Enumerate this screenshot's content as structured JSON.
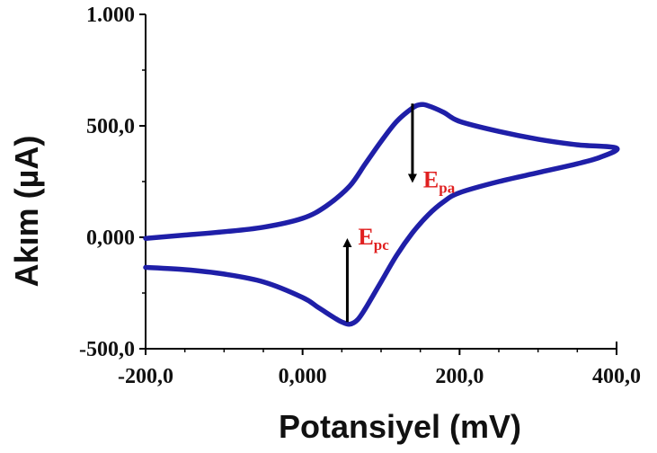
{
  "chart_data": {
    "type": "line",
    "title": "",
    "xlabel": "Potansiyel (mV)",
    "ylabel": "Akım (µA)",
    "xlim": [
      -200,
      400
    ],
    "ylim": [
      -500,
      1000
    ],
    "grid": false,
    "legend": "none",
    "x_ticks": [
      {
        "value": -200,
        "label": "-200,0"
      },
      {
        "value": 0,
        "label": "0,000"
      },
      {
        "value": 200,
        "label": "200,0"
      },
      {
        "value": 400,
        "label": "400,0"
      }
    ],
    "y_ticks": [
      {
        "value": 1000,
        "label": "1.000"
      },
      {
        "value": 500,
        "label": "500,0"
      },
      {
        "value": 0,
        "label": "0,000"
      },
      {
        "value": -500,
        "label": "-500,0"
      }
    ],
    "series": [
      {
        "color": "#1f1fa8",
        "x": [
          -200,
          -150,
          -100,
          -50,
          0,
          30,
          60,
          80,
          100,
          120,
          140,
          150,
          160,
          180,
          200,
          250,
          300,
          350,
          400,
          380,
          350,
          300,
          250,
          200,
          180,
          160,
          140,
          120,
          100,
          90,
          80,
          70,
          60,
          50,
          40,
          20,
          0,
          -50,
          -100,
          -150,
          -200
        ],
        "y": [
          -5,
          10,
          25,
          45,
          85,
          140,
          230,
          330,
          430,
          520,
          580,
          595,
          590,
          560,
          520,
          475,
          440,
          415,
          400,
          360,
          330,
          290,
          250,
          200,
          160,
          100,
          20,
          -80,
          -200,
          -260,
          -320,
          -370,
          -390,
          -380,
          -360,
          -315,
          -270,
          -200,
          -165,
          -145,
          -135
        ]
      }
    ],
    "annotations": [
      {
        "label_main": "E",
        "label_sub": "pa",
        "color": "#e02020",
        "arrow_x": 140,
        "arrow_from_y": 600,
        "arrow_to_y": 240
      },
      {
        "label_main": "E",
        "label_sub": "pc",
        "color": "#e02020",
        "arrow_x": 57,
        "arrow_from_y": -380,
        "arrow_to_y": 0
      }
    ]
  }
}
